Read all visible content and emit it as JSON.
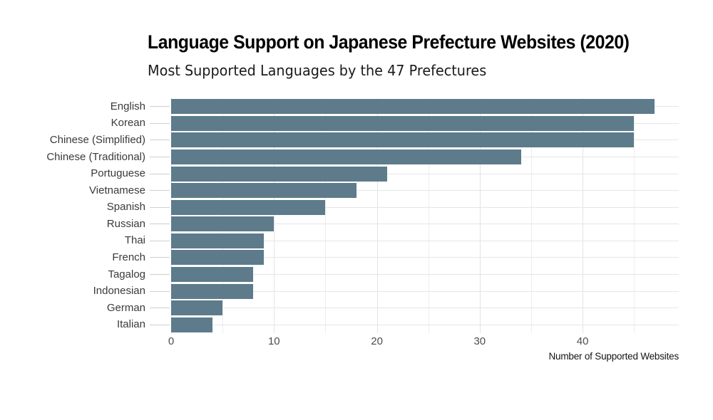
{
  "chart_data": {
    "type": "bar",
    "orientation": "horizontal",
    "title": "Language Support on Japanese Prefecture Websites (2020)",
    "subtitle": "Most Supported Languages by the 47 Prefectures",
    "xlabel": "Number of Supported Websites",
    "ylabel": "",
    "categories": [
      "English",
      "Korean",
      "Chinese (Simplified)",
      "Chinese (Traditional)",
      "Portuguese",
      "Vietnamese",
      "Spanish",
      "Russian",
      "Thai",
      "French",
      "Tagalog",
      "Indonesian",
      "German",
      "Italian"
    ],
    "values": [
      47,
      45,
      45,
      34,
      21,
      18,
      15,
      10,
      9,
      9,
      8,
      8,
      5,
      4
    ],
    "xlim": [
      0,
      49.35
    ],
    "xticks": [
      0,
      10,
      20,
      30,
      40
    ],
    "xticks_minor": [
      5,
      15,
      25,
      35,
      45
    ],
    "grid": "on",
    "legend": "none",
    "colors": {
      "bar": "#5d7b8b",
      "major_grid": "#e3e3e3",
      "minor_grid": "#eeeeee",
      "axis_tick": "#cfcfcf",
      "row_grid": "#e6e6e6",
      "y_label": "#3a3a3a",
      "x_label": "#4d4d4d",
      "title": "#000000",
      "subtitle": "#1a1a1a",
      "caption": "#141414",
      "background": "#ffffff"
    }
  }
}
